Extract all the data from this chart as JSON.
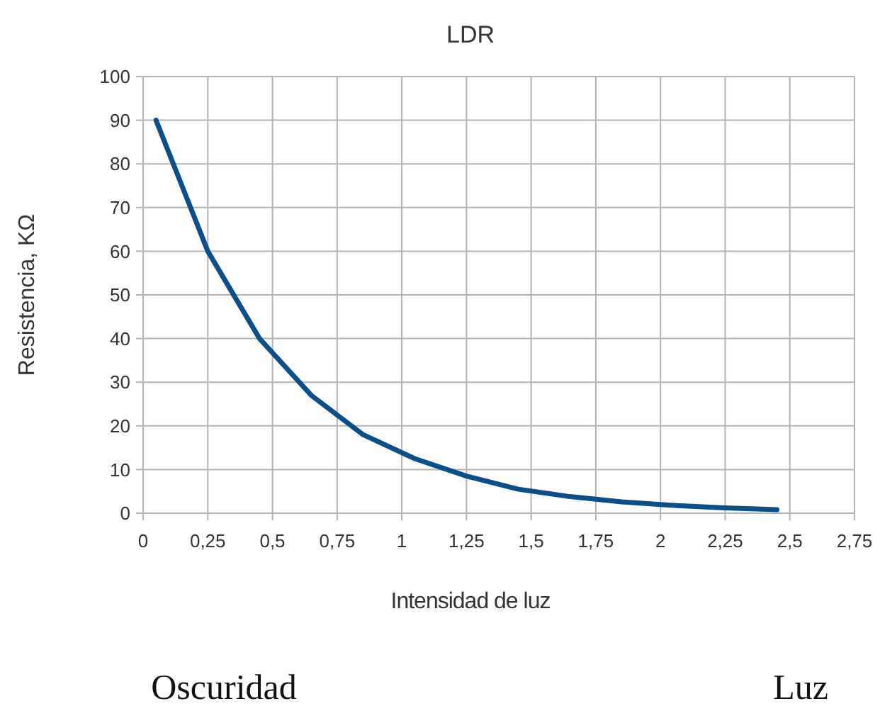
{
  "chart_data": {
    "type": "line",
    "title": "LDR",
    "xlabel": "Intensidad de luz",
    "ylabel": "Resistencia, KΩ",
    "x": [
      0.05,
      0.25,
      0.45,
      0.65,
      0.85,
      1.05,
      1.25,
      1.45,
      1.65,
      1.85,
      2.05,
      2.25,
      2.45
    ],
    "series": [
      {
        "color": "#0b4f8a",
        "values": [
          90,
          60,
          40,
          27,
          18,
          12.5,
          8.5,
          5.5,
          3.8,
          2.6,
          1.8,
          1.2,
          0.8
        ]
      }
    ],
    "xlim": [
      0,
      2.75
    ],
    "xticks": [
      0,
      {
        "value": 0.25,
        "label": "0,25"
      },
      {
        "value": 0.5,
        "label": "0,5"
      },
      {
        "value": 0.75,
        "label": "0,75"
      },
      1,
      {
        "value": 1.25,
        "label": "1,25"
      },
      {
        "value": 1.5,
        "label": "1,5"
      },
      {
        "value": 1.75,
        "label": "1,75"
      },
      2,
      {
        "value": 2.25,
        "label": "2,25"
      },
      {
        "value": 2.5,
        "label": "2,5"
      },
      {
        "value": 2.75,
        "label": "2,75"
      }
    ],
    "ylim": [
      0,
      100
    ],
    "yticks": [
      0,
      10,
      20,
      30,
      40,
      50,
      60,
      70,
      80,
      90,
      100
    ],
    "grid": true,
    "marker": "none",
    "line_style": "solid",
    "annotations": [
      "Oscuridad",
      "Luz"
    ]
  }
}
